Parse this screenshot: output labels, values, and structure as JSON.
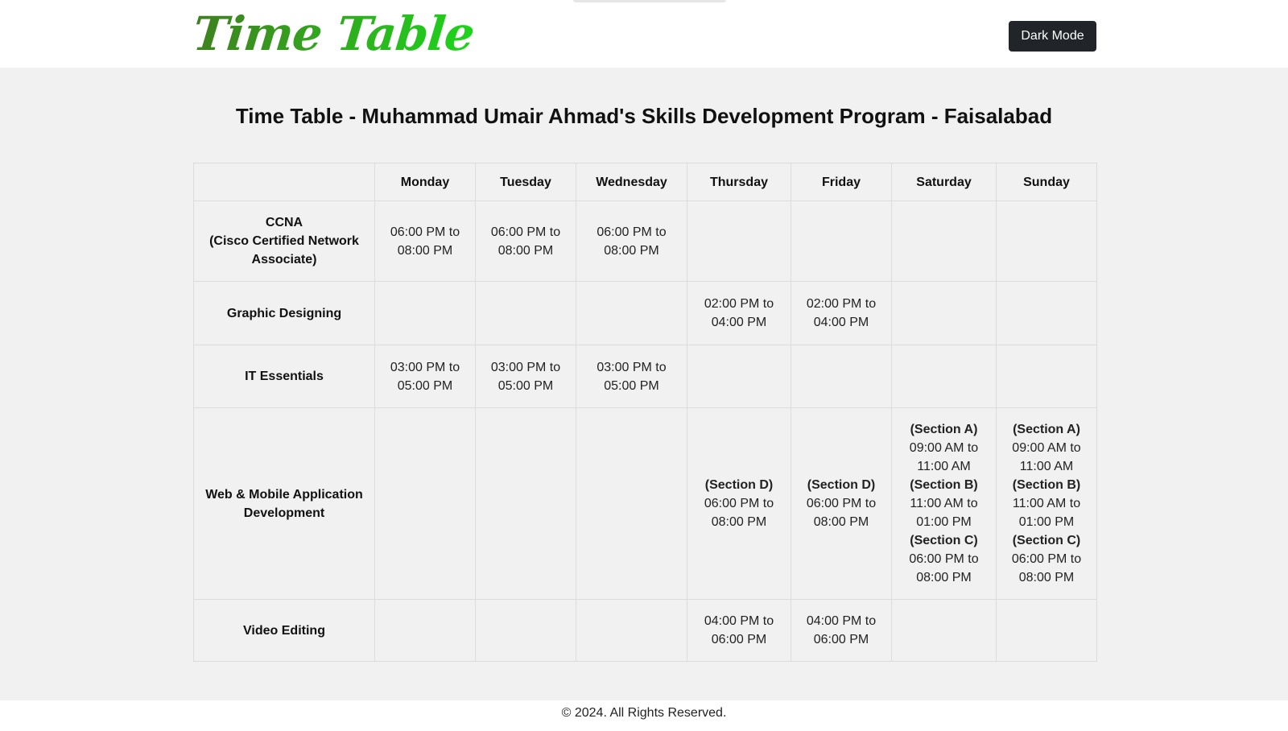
{
  "header": {
    "logo_text": "Time Table",
    "dark_mode_label": "Dark Mode",
    "brand_gradient": [
      "#3f7f1f",
      "#1cd61c"
    ]
  },
  "page": {
    "title": "Time Table - Muhammad Umair Ahmad's Skills Development Program - Faisalabad"
  },
  "timetable": {
    "days": [
      "Monday",
      "Tuesday",
      "Wednesday",
      "Thursday",
      "Friday",
      "Saturday",
      "Sunday"
    ],
    "rows": [
      {
        "subject_lines": [
          "CCNA",
          "(Cisco Certified Network Associate)"
        ],
        "cells": [
          [
            {
              "section": "",
              "time": "06:00 PM to 08:00 PM"
            }
          ],
          [
            {
              "section": "",
              "time": "06:00 PM to 08:00 PM"
            }
          ],
          [
            {
              "section": "",
              "time": "06:00 PM to 08:00 PM"
            }
          ],
          [],
          [],
          [],
          []
        ]
      },
      {
        "subject_lines": [
          "Graphic Designing"
        ],
        "cells": [
          [],
          [],
          [],
          [
            {
              "section": "",
              "time": "02:00 PM to 04:00 PM"
            }
          ],
          [
            {
              "section": "",
              "time": "02:00 PM to 04:00 PM"
            }
          ],
          [],
          []
        ]
      },
      {
        "subject_lines": [
          "IT Essentials"
        ],
        "cells": [
          [
            {
              "section": "",
              "time": "03:00 PM to 05:00 PM"
            }
          ],
          [
            {
              "section": "",
              "time": "03:00 PM to 05:00 PM"
            }
          ],
          [
            {
              "section": "",
              "time": "03:00 PM to 05:00 PM"
            }
          ],
          [],
          [],
          [],
          []
        ]
      },
      {
        "subject_lines": [
          "Web & Mobile Application Development"
        ],
        "cells": [
          [],
          [],
          [],
          [
            {
              "section": "(Section D)",
              "time": "06:00 PM to 08:00 PM"
            }
          ],
          [
            {
              "section": "(Section D)",
              "time": "06:00 PM to 08:00 PM"
            }
          ],
          [
            {
              "section": "(Section A)",
              "time": "09:00 AM to 11:00 AM"
            },
            {
              "section": "(Section B)",
              "time": "11:00 AM to 01:00 PM"
            },
            {
              "section": "(Section C)",
              "time": "06:00 PM to 08:00 PM"
            }
          ],
          [
            {
              "section": "(Section A)",
              "time": "09:00 AM to 11:00 AM"
            },
            {
              "section": "(Section B)",
              "time": "11:00 AM to 01:00 PM"
            },
            {
              "section": "(Section C)",
              "time": "06:00 PM to 08:00 PM"
            }
          ]
        ]
      },
      {
        "subject_lines": [
          "Video Editing"
        ],
        "cells": [
          [],
          [],
          [],
          [
            {
              "section": "",
              "time": "04:00 PM to 06:00 PM"
            }
          ],
          [
            {
              "section": "",
              "time": "04:00 PM to 06:00 PM"
            }
          ],
          [],
          []
        ]
      }
    ]
  },
  "footer": {
    "text": "© 2024. All Rights Reserved."
  }
}
